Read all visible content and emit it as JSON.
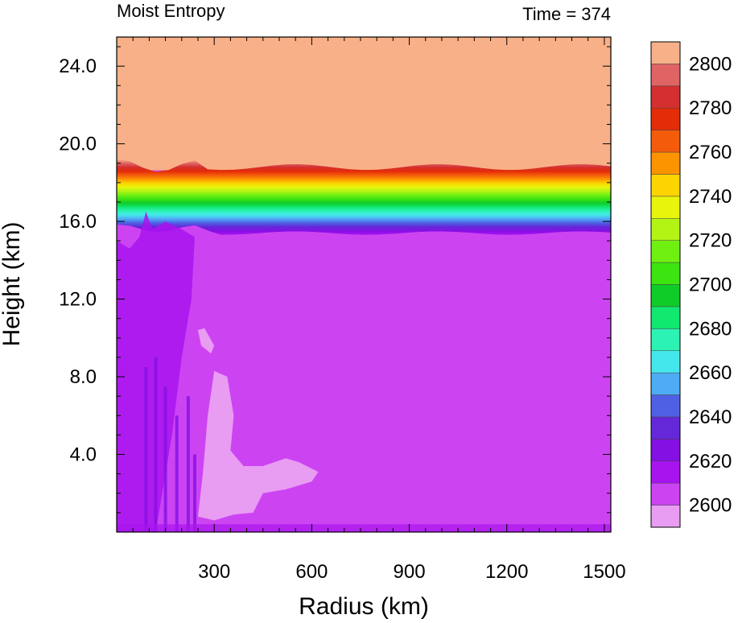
{
  "chart_data": {
    "type": "heatmap",
    "title_left": "Moist Entropy",
    "title_right": "Time = 374",
    "xlabel": "Radius (km)",
    "ylabel": "Height (km)",
    "xlim": [
      0,
      1520
    ],
    "ylim": [
      0,
      25.5
    ],
    "x_ticks": [
      "300",
      "600",
      "900",
      "1200",
      "1500"
    ],
    "x_tick_values": [
      300,
      600,
      900,
      1200,
      1500
    ],
    "y_ticks": [
      "4.0",
      "8.0",
      "12.0",
      "16.0",
      "20.0",
      "24.0"
    ],
    "y_tick_values": [
      4,
      8,
      12,
      16,
      20,
      24
    ],
    "colorbar": {
      "labels": [
        "2600",
        "2620",
        "2640",
        "2660",
        "2680",
        "2700",
        "2720",
        "2740",
        "2760",
        "2780",
        "2800"
      ],
      "levels": [
        2600,
        2610,
        2620,
        2630,
        2640,
        2650,
        2660,
        2670,
        2680,
        2690,
        2700,
        2710,
        2720,
        2730,
        2740,
        2750,
        2760,
        2770,
        2780,
        2790,
        2800
      ],
      "colors": [
        "#e89cf2",
        "#cc44f2",
        "#a814ee",
        "#8410e4",
        "#6428d8",
        "#5060e4",
        "#4eacf4",
        "#44e8ec",
        "#2cf2b4",
        "#10e870",
        "#10cc28",
        "#3ce410",
        "#70f010",
        "#b4f414",
        "#e8f40c",
        "#fcd400",
        "#fc9400",
        "#f45c0c",
        "#e42c08",
        "#d43030",
        "#e06464",
        "#f8b088"
      ]
    },
    "fields": {
      "upper_value": 2810,
      "lower_bulk_value": 2615,
      "tropopause_gradient_km": [
        15.4,
        18.8
      ],
      "low_entropy_pocket": {
        "r_km": [
          240,
          620
        ],
        "z_km": [
          0.8,
          10.5
        ],
        "value": 2600
      },
      "core_low_entropy_column": {
        "r_km": [
          70,
          240
        ],
        "z_km": [
          0,
          16.5
        ],
        "value": 2625
      }
    }
  }
}
